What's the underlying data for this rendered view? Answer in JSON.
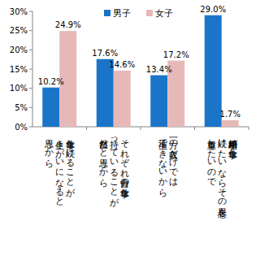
{
  "chart_data": {
    "type": "bar",
    "categories": [
      "仕事を続けることが\n生きがいになると\n思うから",
      "それぞれ自分の仕事を\n持っていることが\n自然だと思うから",
      "一方の収入だけでは\n生活できないから",
      "結婚相手が仕事を\n続けたいならその意思を\n尊重したいので"
    ],
    "series": [
      {
        "name": "男子",
        "color": "#1a75c9",
        "values": [
          10.2,
          17.6,
          13.4,
          29.0
        ],
        "value_labels": [
          "10.2%",
          "17.6%",
          "13.4%",
          "29.0%"
        ]
      },
      {
        "name": "女子",
        "color": "#e6b9b8",
        "values": [
          24.9,
          14.6,
          17.2,
          1.7
        ],
        "value_labels": [
          "24.9%",
          "14.6%",
          "17.2%",
          "1.7%"
        ]
      }
    ],
    "ylim": [
      0,
      30
    ],
    "yticks": [
      {
        "value": 0,
        "label": "0%"
      },
      {
        "value": 5,
        "label": "5%"
      },
      {
        "value": 10,
        "label": "10%"
      },
      {
        "value": 15,
        "label": "15%"
      },
      {
        "value": 20,
        "label": "20%"
      },
      {
        "value": 25,
        "label": "25%"
      },
      {
        "value": 30,
        "label": "30%"
      }
    ],
    "grid": false,
    "legend": "top",
    "data_labels": true
  }
}
